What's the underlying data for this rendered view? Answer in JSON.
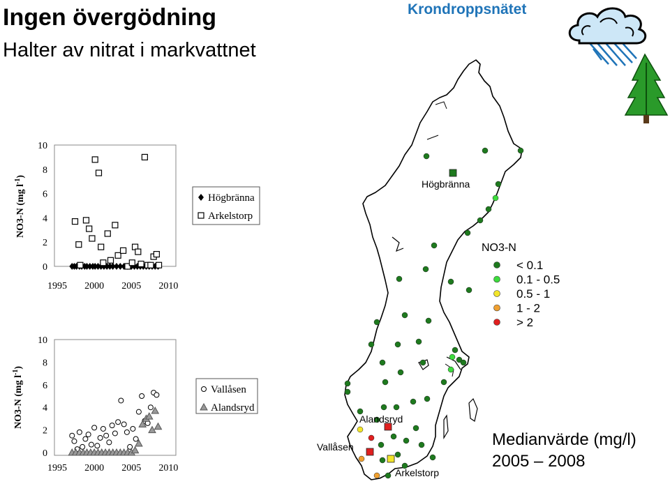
{
  "title": "Ingen övergödning",
  "subtitle": "Halter av nitrat i markvattnet",
  "brand": "Krondroppsnätet",
  "footer": {
    "line1": "Medianvärde (mg/l)",
    "line2": "2005 – 2008"
  },
  "chart_data": [
    {
      "type": "scatter",
      "ylabel_main": "NO3-N (mg l",
      "ylabel_sup": "-1",
      "ylabel_end": ")",
      "xlim": [
        1995,
        2011
      ],
      "ylim": [
        0,
        10
      ],
      "xticks": [
        "1995",
        "2000",
        "2005",
        "2010"
      ],
      "yticks": [
        "0",
        "2",
        "4",
        "6",
        "8",
        "10"
      ],
      "legend_position": "right",
      "series": [
        {
          "name": "Högbränna",
          "marker": "diamond",
          "x": [
            1997.0,
            1997.3,
            1997.6,
            1998.0,
            1998.3,
            1998.7,
            1999.0,
            1999.4,
            1999.8,
            2000.1,
            2000.5,
            2000.9,
            2001.3,
            2001.7,
            2002.1,
            2002.5,
            2003.0,
            2003.5,
            2004.0,
            2004.5,
            2005.0,
            2005.4,
            2005.8,
            2006.2,
            2006.6,
            2007.0,
            2007.4,
            2007.8,
            2008.2,
            2008.6
          ],
          "y": [
            0,
            0,
            0,
            0,
            0,
            0,
            0,
            0,
            0,
            0,
            0,
            0,
            0,
            0,
            0,
            0,
            0,
            0,
            0,
            0,
            0,
            0,
            0,
            0,
            0,
            0,
            0,
            0,
            0,
            0
          ]
        },
        {
          "name": "Arkelstorp",
          "marker": "square",
          "x": [
            1997.4,
            1997.9,
            1998.1,
            1998.9,
            1999.3,
            1999.7,
            2000.1,
            2000.6,
            2000.9,
            2001.2,
            2001.8,
            2002.2,
            2002.8,
            2003.2,
            2003.9,
            2004.5,
            2005.1,
            2005.5,
            2005.9,
            2006.3,
            2006.8,
            2007.2,
            2007.6,
            2008.0,
            2008.4,
            2008.7
          ],
          "y": [
            3.7,
            1.8,
            0.1,
            3.8,
            3.1,
            2.3,
            8.8,
            7.7,
            1.6,
            0.3,
            2.7,
            0.5,
            3.4,
            0.9,
            1.3,
            0,
            0.3,
            1.6,
            1.2,
            0.2,
            9.0,
            0.1,
            0.1,
            0.8,
            1.0,
            0.1
          ]
        }
      ]
    },
    {
      "type": "scatter",
      "ylabel_main": "NO3-N (mg l",
      "ylabel_sup": "-1",
      "ylabel_end": ")",
      "xlim": [
        1995,
        2011
      ],
      "ylim": [
        0,
        10
      ],
      "xticks": [
        "1995",
        "2000",
        "2005",
        "2010"
      ],
      "yticks": [
        "0",
        "2",
        "4",
        "6",
        "8",
        "10"
      ],
      "legend_position": "right",
      "series": [
        {
          "name": "Vallåsen",
          "marker": "circle",
          "x": [
            1997.0,
            1997.3,
            1997.7,
            1998.0,
            1998.4,
            1998.8,
            1999.2,
            1999.6,
            2000.0,
            2000.4,
            2000.8,
            2001.2,
            2001.6,
            2002.0,
            2002.4,
            2002.8,
            2003.2,
            2003.6,
            2004.0,
            2004.4,
            2004.8,
            2005.2,
            2005.6,
            2006.0,
            2006.4,
            2006.8,
            2007.2,
            2007.6,
            2008.0,
            2008.4
          ],
          "y": [
            1.5,
            1.0,
            0.3,
            1.8,
            0.5,
            1.2,
            1.6,
            0.7,
            2.2,
            0.6,
            1.3,
            2.1,
            1.5,
            0.9,
            2.4,
            1.7,
            2.7,
            4.6,
            2.5,
            1.8,
            0.5,
            2.1,
            1.2,
            3.6,
            5.0,
            2.8,
            2.6,
            4.0,
            5.3,
            5.1
          ]
        },
        {
          "name": "Alandsryd",
          "marker": "triangle",
          "x": [
            1997.0,
            1997.5,
            1998.0,
            1998.5,
            1999.0,
            1999.5,
            2000.0,
            2000.5,
            2001.0,
            2001.5,
            2002.0,
            2002.5,
            2003.0,
            2003.5,
            2004.0,
            2004.5,
            2005.0,
            2005.5,
            2006.0,
            2006.5,
            2007.0,
            2007.4,
            2007.8,
            2008.2,
            2008.6
          ],
          "y": [
            0,
            0,
            0,
            0,
            0,
            0,
            0,
            0,
            0,
            0,
            0,
            0,
            0,
            0,
            0,
            0,
            0,
            0.2,
            0.8,
            2.5,
            3.0,
            3.2,
            2.0,
            3.7,
            2.3
          ]
        }
      ]
    }
  ],
  "map": {
    "labels": {
      "hogbranna": "Högbränna",
      "alandsryd": "Alandsryd",
      "vallasen": "Vallåsen",
      "arkelstorp": "Arkelstorp"
    },
    "legend": {
      "title": "NO3-N",
      "items": [
        {
          "label": "< 0.1",
          "color": "#1e7a1e"
        },
        {
          "label": "0.1 - 0.5",
          "color": "#3ddc3d"
        },
        {
          "label": "0.5 - 1",
          "color": "#f2e52a"
        },
        {
          "label": "1 - 2",
          "color": "#f0a030"
        },
        {
          "label": "> 2",
          "color": "#e01f1f"
        }
      ]
    }
  }
}
